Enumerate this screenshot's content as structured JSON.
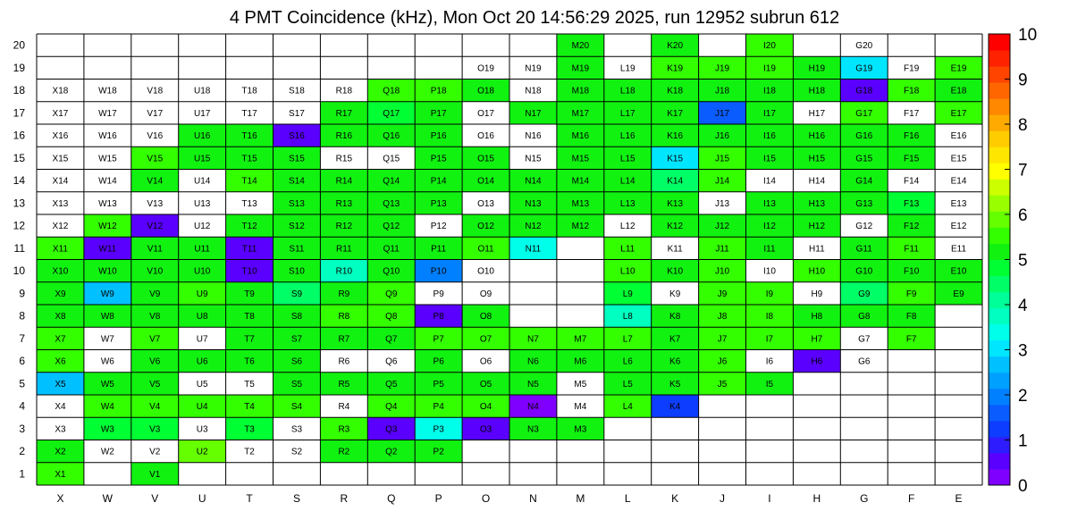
{
  "chart_data": {
    "type": "heatmap",
    "title": "4 PMT Coincidence (kHz), Mon Oct 20 14:56:29 2025, run 12952 subrun 612",
    "columns": [
      "X",
      "W",
      "V",
      "U",
      "T",
      "S",
      "R",
      "Q",
      "P",
      "O",
      "N",
      "M",
      "L",
      "K",
      "J",
      "I",
      "H",
      "G",
      "F",
      "E"
    ],
    "rows": [
      "1",
      "2",
      "3",
      "4",
      "5",
      "6",
      "7",
      "8",
      "9",
      "10",
      "11",
      "12",
      "13",
      "14",
      "15",
      "16",
      "17",
      "18",
      "19",
      "20"
    ],
    "zlim": [
      0,
      10
    ],
    "color_scale_ticks": [
      "0",
      "1",
      "2",
      "3",
      "4",
      "5",
      "6",
      "7",
      "8",
      "9",
      "10"
    ],
    "colors": {
      "scale": [
        "#7f00ff",
        "#5a00ff",
        "#2e1cff",
        "#0d3dff",
        "#0a5cff",
        "#0080ff",
        "#00a0ff",
        "#00c0ff",
        "#00e6ff",
        "#00ffea",
        "#00ffc0",
        "#00ff99",
        "#00ff66",
        "#00ff33",
        "#11f211",
        "#33ff00",
        "#66ff00",
        "#99ff00",
        "#ccff00",
        "#ffff00",
        "#ffe600",
        "#ffcc00",
        "#ffaa00",
        "#ff8800",
        "#ff6600",
        "#ff4400",
        "#ff2200",
        "#ff0000"
      ],
      "grid": "#000000",
      "empty": "#ffffff"
    },
    "cells": {
      "1": {
        "X": 5.5,
        "V": 5.2
      },
      "2": {
        "X": 5.3,
        "W": null,
        "V": null,
        "U": 5.8,
        "T": null,
        "S": null,
        "R": 5.2,
        "Q": 5.3,
        "P": 5.2
      },
      "3": {
        "X": null,
        "W": 4.8,
        "V": 4.8,
        "U": null,
        "T": 4.9,
        "S": null,
        "R": 5.5,
        "Q": 0.4,
        "P": 3.5,
        "O": 0.4,
        "N": 5.3,
        "M": 5.2
      },
      "4": {
        "X": null,
        "W": 5.4,
        "V": 5.4,
        "U": 5.6,
        "T": 5.5,
        "S": 5.5,
        "R": null,
        "Q": 5.6,
        "P": 5.5,
        "O": 5.5,
        "N": 0.3,
        "M": null,
        "L": 5.6,
        "K": 1.3
      },
      "5": {
        "X": 2.8,
        "W": 5.0,
        "V": 5.0,
        "U": null,
        "T": null,
        "S": 5.0,
        "R": 5.2,
        "Q": 5.2,
        "P": 5.2,
        "O": 5.2,
        "N": 5.2,
        "M": null,
        "L": 5.2,
        "K": 5.2,
        "J": 5.5,
        "I": 5.2
      },
      "6": {
        "X": 5.5,
        "W": null,
        "V": 5.0,
        "U": 5.0,
        "T": 5.0,
        "S": 5.2,
        "R": null,
        "Q": null,
        "P": 5.3,
        "O": null,
        "N": 5.2,
        "M": 5.3,
        "L": 5.3,
        "K": 5.2,
        "J": 5.5,
        "I": null,
        "H": 0.4,
        "G": null
      },
      "7": {
        "X": 5.4,
        "W": null,
        "V": 5.4,
        "U": null,
        "T": 5.2,
        "S": 5.2,
        "R": 5.3,
        "Q": 5.3,
        "P": 5.5,
        "O": 5.5,
        "N": 5.5,
        "M": 5.5,
        "L": 5.4,
        "K": 5.3,
        "J": 5.5,
        "I": 5.4,
        "H": 5.6,
        "G": null,
        "F": 5.6
      },
      "8": {
        "X": 5.3,
        "W": 5.3,
        "V": 5.2,
        "U": 5.1,
        "T": 5.2,
        "S": 5.3,
        "R": 5.4,
        "Q": 5.4,
        "P": 0.4,
        "O": 5.2,
        "L": 3.7,
        "K": 5.2,
        "J": 5.4,
        "I": 5.4,
        "H": 5.3,
        "G": 5.2,
        "F": 5.2
      },
      "9": {
        "X": 5.3,
        "W": 2.8,
        "V": 5.0,
        "U": 5.4,
        "T": 5.3,
        "S": 4.6,
        "R": 5.3,
        "Q": 5.4,
        "P": null,
        "O": null,
        "L": 4.9,
        "K": null,
        "J": 5.6,
        "I": 5.6,
        "H": null,
        "G": 4.4,
        "F": 5.6,
        "E": 5.2
      },
      "10": {
        "X": 5.3,
        "W": 5.2,
        "V": 5.2,
        "U": 5.3,
        "T": 0.4,
        "S": 5.2,
        "R": 3.7,
        "Q": 5.2,
        "P": 1.8,
        "O": null,
        "L": 5.4,
        "K": 5.2,
        "J": 5.5,
        "I": null,
        "H": 5.4,
        "G": 5.3,
        "F": 5.3,
        "E": 5.3
      },
      "11": {
        "X": 5.4,
        "W": 0.5,
        "V": 5.3,
        "U": 5.3,
        "T": 0.4,
        "S": 5.0,
        "R": 5.3,
        "Q": 5.2,
        "P": 5.3,
        "O": 5.4,
        "N": 3.5,
        "L": 5.4,
        "K": null,
        "J": 5.5,
        "I": 5.3,
        "H": null,
        "G": 5.3,
        "F": 5.4,
        "E": null
      },
      "12": {
        "X": null,
        "W": 5.4,
        "V": 0.5,
        "U": null,
        "T": 5.0,
        "S": 5.0,
        "R": 5.0,
        "Q": 5.0,
        "P": null,
        "O": 5.0,
        "N": 5.0,
        "M": 5.2,
        "L": null,
        "K": 5.2,
        "J": 5.3,
        "I": 5.2,
        "H": 5.2,
        "G": null,
        "F": 5.0,
        "E": null
      },
      "13": {
        "X": null,
        "W": null,
        "V": null,
        "U": null,
        "T": null,
        "S": 5.2,
        "R": 5.0,
        "Q": 5.0,
        "P": 5.0,
        "O": null,
        "N": 5.0,
        "M": 5.0,
        "L": 5.0,
        "K": 5.0,
        "J": null,
        "I": 5.2,
        "H": 5.0,
        "G": 5.1,
        "F": 4.8,
        "E": null
      },
      "14": {
        "X": null,
        "W": null,
        "V": 5.2,
        "U": null,
        "T": 5.5,
        "S": 5.3,
        "R": 5.2,
        "Q": 5.0,
        "P": 5.2,
        "O": 5.0,
        "N": 5.2,
        "M": 5.2,
        "L": 5.2,
        "K": 4.6,
        "J": 5.5,
        "I": null,
        "H": null,
        "G": 5.3,
        "F": null,
        "E": null
      },
      "15": {
        "X": null,
        "W": null,
        "V": 5.4,
        "U": 5.2,
        "T": 5.2,
        "S": 5.2,
        "R": null,
        "Q": null,
        "P": 5.2,
        "O": 5.0,
        "N": null,
        "M": 5.2,
        "L": 5.3,
        "K": 3.2,
        "J": 5.4,
        "I": 5.3,
        "H": 5.3,
        "G": 5.3,
        "F": 5.3,
        "E": null
      },
      "16": {
        "X": null,
        "W": null,
        "V": null,
        "U": 5.2,
        "T": 5.2,
        "S": 0.4,
        "R": 5.0,
        "Q": 5.0,
        "P": 5.0,
        "O": null,
        "N": null,
        "M": 5.2,
        "L": 5.2,
        "K": 5.0,
        "J": 5.2,
        "I": 5.2,
        "H": 5.3,
        "G": 5.2,
        "F": 5.2,
        "E": null
      },
      "17": {
        "X": null,
        "W": null,
        "V": null,
        "U": null,
        "T": null,
        "S": null,
        "R": 5.3,
        "Q": 4.8,
        "P": 5.0,
        "O": null,
        "N": 5.2,
        "M": 5.3,
        "L": 5.3,
        "K": 5.3,
        "J": 1.6,
        "I": 5.2,
        "H": null,
        "G": 5.6,
        "F": null,
        "E": 5.4
      },
      "18": {
        "X": null,
        "W": null,
        "V": null,
        "U": null,
        "T": null,
        "S": null,
        "R": null,
        "Q": 5.4,
        "P": 5.4,
        "O": 5.2,
        "N": null,
        "M": 5.3,
        "L": 5.3,
        "K": 5.2,
        "J": 5.3,
        "I": 5.3,
        "H": 5.3,
        "G": 0.4,
        "F": 5.4,
        "E": 5.3
      },
      "19": {
        "O": null,
        "N": null,
        "M": 5.3,
        "L": null,
        "K": 5.4,
        "J": 5.4,
        "I": 5.4,
        "H": 5.3,
        "G": 3.0,
        "F": null,
        "E": 5.4
      },
      "20": {
        "M": 5.3,
        "K": 5.0,
        "I": 5.4,
        "G": null
      }
    },
    "labeled_empty": {
      "2": [
        "W",
        "V",
        "T",
        "S"
      ],
      "3": [
        "X",
        "U",
        "S"
      ],
      "4": [
        "X",
        "R",
        "M"
      ],
      "5": [
        "U",
        "T",
        "M"
      ],
      "6": [
        "W",
        "R",
        "Q",
        "O",
        "I",
        "G"
      ],
      "7": [
        "W",
        "U",
        "G"
      ],
      "9": [
        "P",
        "O",
        "K",
        "H"
      ],
      "10": [
        "O",
        "I"
      ],
      "11": [
        "K",
        "H",
        "E"
      ],
      "12": [
        "X",
        "U",
        "P",
        "L",
        "G",
        "E"
      ],
      "13": [
        "X",
        "W",
        "V",
        "U",
        "T",
        "O",
        "J",
        "E"
      ],
      "14": [
        "X",
        "W",
        "U",
        "I",
        "H",
        "F",
        "E"
      ],
      "15": [
        "X",
        "R",
        "Q",
        "N",
        "E"
      ],
      "16": [
        "O",
        "N",
        "E"
      ],
      "17": [
        "S",
        "O",
        "H",
        "F"
      ],
      "18": [
        "N"
      ],
      "19": [
        "O",
        "N",
        "L",
        "F"
      ],
      "20": [
        "G"
      ]
    }
  }
}
